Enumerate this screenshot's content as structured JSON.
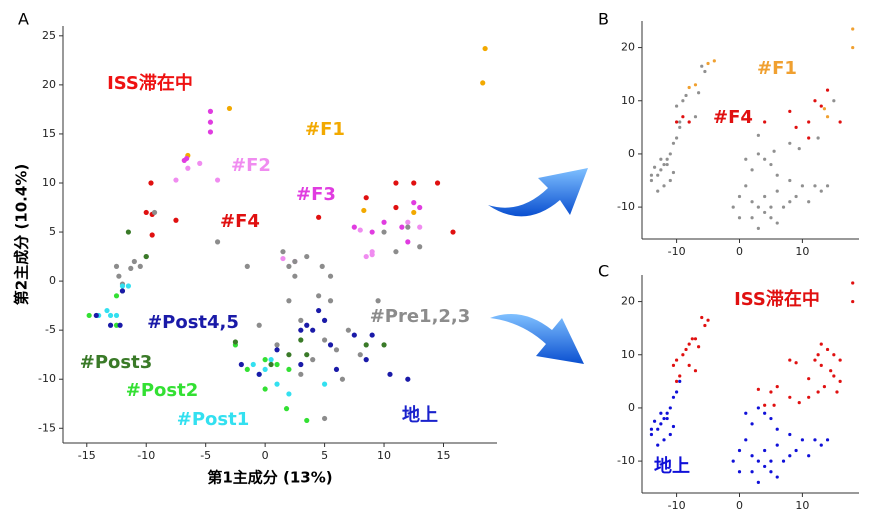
{
  "chart_data": [
    {
      "type": "scatter",
      "panel_label": "A",
      "xlabel": "第1主成分 (13%)",
      "ylabel": "第2主成分 (10.4%)",
      "xlim": [
        -17,
        19.5
      ],
      "ylim": [
        -16.5,
        26
      ],
      "xticks": [
        -15,
        -10,
        -5,
        0,
        5,
        10,
        15
      ],
      "yticks": [
        -15,
        -10,
        -5,
        0,
        5,
        10,
        15,
        20,
        25
      ],
      "annotations": [
        {
          "text": "ISS滞在中",
          "color": "#ee1111"
        },
        {
          "text": "地上",
          "color": "#1a22cc"
        }
      ],
      "series": [
        {
          "name": "#F1",
          "color": "#f2a900",
          "x": [
            18.5,
            18.3,
            -3,
            -6.5,
            8.3,
            12.5
          ],
          "y": [
            23.7,
            20.2,
            17.6,
            12.8,
            7.2,
            7.0
          ]
        },
        {
          "name": "#F2",
          "color": "#f08cf0",
          "x": [
            -7.5,
            -6.5,
            -4,
            -5.5,
            1.5,
            2.5,
            8.5,
            9,
            8,
            12,
            13,
            9
          ],
          "y": [
            10.3,
            11.5,
            10.3,
            12,
            2.3,
            2,
            2.5,
            3,
            5.2,
            6,
            5.5,
            2.7
          ]
        },
        {
          "name": "#F3",
          "color": "#e03ce0",
          "x": [
            -4.6,
            -4.6,
            -4.6,
            -6.6,
            -6.8,
            10,
            12.5,
            13,
            7.5,
            9,
            12,
            11.5
          ],
          "y": [
            17.3,
            16.2,
            15.2,
            12.5,
            12.3,
            6,
            8,
            7.5,
            5.5,
            5,
            4,
            5.5
          ]
        },
        {
          "name": "#F4",
          "color": "#e01010",
          "x": [
            -9.6,
            -10,
            -9.5,
            -7.5,
            -9.5,
            8.5,
            4.5,
            11,
            12.5,
            14.5,
            15.8,
            11
          ],
          "y": [
            10,
            7,
            6.8,
            6.2,
            4.7,
            8.5,
            6.5,
            10,
            10,
            10,
            5,
            7.5
          ]
        },
        {
          "name": "#Pre1,2,3",
          "color": "#8c8c8c",
          "x": [
            -12.5,
            -12.3,
            -12,
            -11.3,
            -11,
            -10,
            -10.5,
            -9.3,
            -4,
            -1.5,
            1.5,
            2,
            2.5,
            3.5,
            4.8,
            5.5,
            2.5,
            4.5,
            5.5,
            2,
            3,
            5,
            6,
            7,
            4,
            5,
            3,
            6.5,
            1,
            10,
            12,
            13,
            11,
            9.5,
            -0.5,
            8
          ],
          "y": [
            1.5,
            0.5,
            -0.3,
            1.3,
            2,
            2.5,
            1.5,
            7,
            4,
            1.5,
            3,
            1.5,
            2,
            2.5,
            1.5,
            0.5,
            0.5,
            -1.5,
            -2,
            -2,
            -4,
            -6,
            -7,
            -5,
            -8,
            -14,
            -9.5,
            -10,
            -6.5,
            5,
            5.5,
            3.5,
            3,
            -2,
            -4.5,
            -7.5
          ]
        },
        {
          "name": "#Post1",
          "color": "#33e0f0",
          "x": [
            -12.5,
            -13,
            -12,
            -11.5,
            -14,
            -13.3,
            -0.5,
            -1,
            0,
            1,
            2,
            5,
            0.5
          ],
          "y": [
            -3.5,
            -3.5,
            -0.5,
            -0.5,
            -3.5,
            -3,
            -9.5,
            -8.5,
            -9,
            -10.5,
            -11.5,
            -10.5,
            -8
          ]
        },
        {
          "name": "#Post2",
          "color": "#33e033",
          "x": [
            -14.8,
            -12.5,
            -12.5,
            -2.5,
            -1.5,
            0,
            1,
            1.8,
            2,
            3.5,
            0
          ],
          "y": [
            -3.5,
            -1.5,
            -4.5,
            -6.5,
            -9,
            -8,
            -8.5,
            -13,
            -9,
            -14.2,
            -11
          ]
        },
        {
          "name": "#Post3",
          "color": "#3a7a28",
          "x": [
            -11.5,
            -10,
            -12,
            -2.5,
            0.5,
            2,
            3,
            3.5,
            8.5,
            10
          ],
          "y": [
            5,
            2.5,
            -1,
            -6.2,
            -8.5,
            -7.5,
            -6,
            -7.5,
            -6.5,
            -6.5
          ]
        },
        {
          "name": "#Post4,5",
          "color": "#1a1aa8",
          "x": [
            -14.2,
            -13,
            -12.2,
            -12,
            4.5,
            5,
            4,
            3.5,
            3,
            5.5,
            1,
            -0.5,
            3,
            6,
            7.5,
            9,
            8.5,
            10.5,
            12,
            -2
          ],
          "y": [
            -3.5,
            -4.5,
            -4.5,
            -1,
            -3,
            -4,
            -5,
            -4.5,
            -5,
            -6.5,
            -7,
            -9.5,
            -8.5,
            -9,
            -5.5,
            -5.5,
            -8,
            -9.5,
            -10,
            -8.5
          ]
        }
      ]
    },
    {
      "type": "scatter",
      "panel_label": "B",
      "xlim": [
        -15.5,
        19
      ],
      "ylim": [
        -16,
        25
      ],
      "xticks": [
        -10,
        0,
        10
      ],
      "yticks": [
        -10,
        0,
        10,
        20
      ],
      "series": [
        {
          "color": "#909090",
          "x": [
            -9.5,
            -10,
            -10.5,
            -11,
            -11.5,
            -12,
            -12.5,
            -13,
            -14,
            -11,
            -12,
            -13,
            -10.5,
            -11.5,
            -12.5,
            -13.5,
            -14,
            1,
            3,
            4,
            5,
            2,
            6,
            8,
            10,
            12,
            13,
            14,
            1,
            0,
            2,
            3,
            4,
            5,
            6,
            7,
            8,
            9,
            -1,
            0,
            2,
            4,
            6,
            11,
            3,
            5,
            -6,
            -5.5,
            -8.5,
            -9,
            -7,
            -6.5,
            -10,
            -9.5,
            15,
            12.5,
            9.5,
            8,
            3,
            5.5
          ],
          "y": [
            5,
            3,
            2,
            0,
            -1,
            -2,
            -3,
            -4,
            -4,
            -5,
            -6,
            -7,
            -3.5,
            -2,
            -1,
            -2.5,
            -5,
            -1,
            0,
            -1,
            -2,
            -3,
            -4,
            -5,
            -6,
            -6,
            -7,
            -6,
            -6,
            -8,
            -9,
            -10,
            -11,
            -12,
            -13,
            -10,
            -9,
            -8,
            -10,
            -12,
            -12,
            -8,
            -7,
            -9,
            -14,
            -10,
            16.5,
            15.5,
            11,
            10,
            7,
            11.5,
            9,
            6,
            10,
            3,
            1,
            2,
            3.5,
            0.5
          ]
        },
        {
          "name": "#F1",
          "color": "#f0a030",
          "x": [
            18,
            18,
            -7,
            -5,
            -4,
            -8,
            13.5,
            14
          ],
          "y": [
            23.5,
            20,
            13,
            17,
            17.5,
            12.5,
            8.5,
            7
          ]
        },
        {
          "name": "#F4",
          "color": "#e01010",
          "x": [
            -9,
            -8,
            -10,
            8,
            12,
            13,
            14,
            16,
            11,
            4,
            9,
            11
          ],
          "y": [
            7,
            6,
            6,
            8,
            10,
            9,
            12,
            6,
            6,
            6,
            5,
            3
          ]
        }
      ]
    },
    {
      "type": "scatter",
      "panel_label": "C",
      "xlim": [
        -15.5,
        19
      ],
      "ylim": [
        -16,
        25
      ],
      "xticks": [
        -10,
        0,
        10
      ],
      "yticks": [
        -10,
        0,
        10,
        20
      ],
      "series": [
        {
          "name": "ISS滞在中",
          "color": "#e01010",
          "x": [
            18,
            18,
            -6,
            -5,
            -5.5,
            -7,
            -8,
            -8.5,
            -9,
            -7.5,
            -6.5,
            -10,
            -10.5,
            -9.5,
            -10,
            -8,
            -7,
            8,
            9,
            12,
            12.5,
            13,
            14,
            15,
            16,
            14.5,
            15,
            16,
            13,
            11,
            13.5,
            12.5,
            9.5,
            8,
            11,
            15.5,
            3,
            5,
            6,
            4,
            5.5
          ],
          "y": [
            23.5,
            20,
            17,
            16.5,
            15.5,
            13,
            12,
            11,
            10,
            13,
            11.5,
            9,
            8,
            6,
            5,
            8,
            7,
            9,
            8.5,
            9,
            10,
            12,
            11,
            10,
            9,
            7,
            6,
            5,
            8,
            5.5,
            4,
            3,
            1,
            2,
            2,
            3,
            3.5,
            3,
            4,
            0.5,
            0.5
          ]
        },
        {
          "name": "地上",
          "color": "#1010d8",
          "x": [
            -9.5,
            -10,
            -10.5,
            -11,
            -11.5,
            -12,
            -12.5,
            -13,
            -14,
            -11,
            -12,
            -13,
            -10.5,
            -11.5,
            -12.5,
            -13.5,
            -14,
            1,
            3,
            4,
            5,
            2,
            6,
            8,
            10,
            12,
            13,
            14,
            1,
            0,
            2,
            3,
            4,
            5,
            6,
            7,
            8,
            9,
            -1,
            0,
            2,
            4,
            6,
            11,
            3,
            5
          ],
          "y": [
            5,
            3,
            2,
            0,
            -1,
            -2,
            -3,
            -4,
            -4,
            -5,
            -6,
            -7,
            -3.5,
            -2,
            -1,
            -2.5,
            -5,
            -1,
            0,
            -1,
            -2,
            -3,
            -4,
            -5,
            -6,
            -6,
            -7,
            -6,
            -6,
            -8,
            -9,
            -10,
            -11,
            -12,
            -13,
            -10,
            -9,
            -8,
            -10,
            -12,
            -12,
            -8,
            -7,
            -9,
            -14,
            -10
          ]
        }
      ]
    }
  ]
}
